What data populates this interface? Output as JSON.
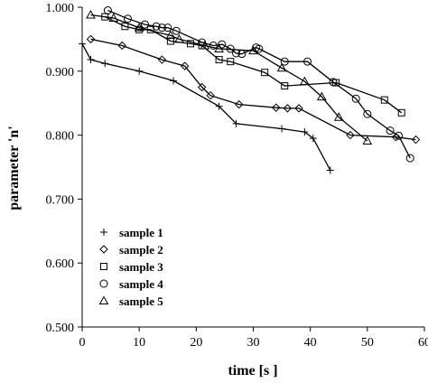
{
  "chart_data": {
    "type": "line",
    "title": "",
    "xlabel": "time [s ]",
    "ylabel": "parameter 'n'",
    "xlim": [
      0,
      60
    ],
    "ylim": [
      0.5,
      1.0
    ],
    "xticks": [
      0,
      10,
      20,
      30,
      40,
      50,
      60
    ],
    "xtick_labels": [
      "0",
      "10",
      "20",
      "30",
      "40",
      "50",
      "60"
    ],
    "yticks": [
      0.5,
      0.6,
      0.7,
      0.8,
      0.9,
      1.0
    ],
    "ytick_labels": [
      "0.500",
      "0.600",
      "0.700",
      "0.800",
      "0.900",
      "1.000"
    ],
    "grid": false,
    "legend_position": "lower-left",
    "series": [
      {
        "name": "sample 1",
        "marker": "plus",
        "x": [
          0.0,
          1.5,
          4,
          10,
          16,
          24,
          27,
          35,
          39,
          40.5,
          43.5
        ],
        "y": [
          0.943,
          0.918,
          0.912,
          0.9,
          0.885,
          0.845,
          0.818,
          0.81,
          0.805,
          0.795,
          0.745
        ]
      },
      {
        "name": "sample 2",
        "marker": "diamond",
        "x": [
          1.5,
          7,
          14,
          18,
          21,
          22.5,
          27.5,
          34,
          36,
          38,
          47,
          55,
          58.5
        ],
        "y": [
          0.95,
          0.94,
          0.918,
          0.908,
          0.875,
          0.862,
          0.848,
          0.843,
          0.842,
          0.842,
          0.8,
          0.797,
          0.793
        ]
      },
      {
        "name": "sample 3",
        "marker": "square",
        "x": [
          4,
          7.5,
          10,
          12,
          15.5,
          19,
          21,
          24,
          26,
          32,
          35.5,
          44.5,
          53,
          56
        ],
        "y": [
          0.985,
          0.97,
          0.965,
          0.965,
          0.947,
          0.943,
          0.94,
          0.918,
          0.915,
          0.898,
          0.877,
          0.882,
          0.855,
          0.835
        ]
      },
      {
        "name": "sample 4",
        "marker": "circle",
        "x": [
          4.5,
          8,
          11,
          13,
          14,
          15,
          16.5,
          21,
          23,
          24.5,
          26,
          27,
          28,
          30.5,
          31,
          35.5,
          39.5,
          44,
          48,
          50,
          54,
          55.5,
          57.5
        ],
        "y": [
          0.995,
          0.982,
          0.973,
          0.97,
          0.968,
          0.968,
          0.963,
          0.945,
          0.94,
          0.942,
          0.935,
          0.928,
          0.927,
          0.937,
          0.935,
          0.915,
          0.915,
          0.883,
          0.857,
          0.833,
          0.807,
          0.799,
          0.764
        ]
      },
      {
        "name": "sample 5",
        "marker": "triangle",
        "x": [
          1.5,
          5.5,
          10,
          15.5,
          17,
          21.5,
          24,
          30,
          35,
          39,
          42,
          45,
          50
        ],
        "y": [
          0.988,
          0.983,
          0.968,
          0.956,
          0.95,
          0.94,
          0.935,
          0.932,
          0.905,
          0.884,
          0.86,
          0.828,
          0.791
        ]
      }
    ]
  }
}
